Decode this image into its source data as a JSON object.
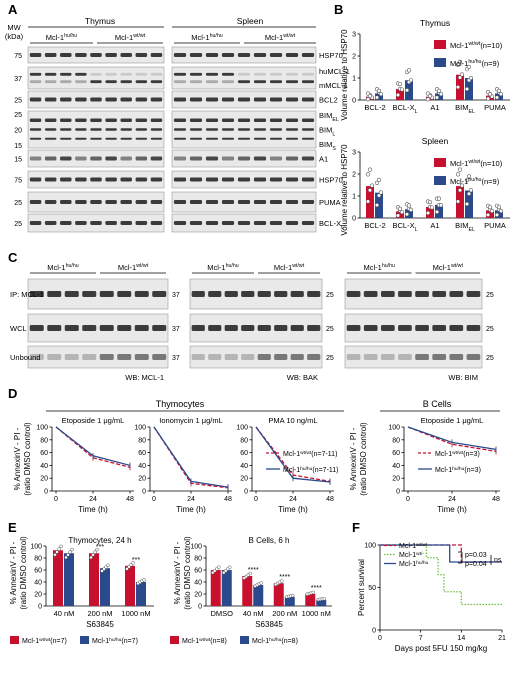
{
  "panel_labels": {
    "a": "A",
    "b": "B",
    "c": "C",
    "d": "D",
    "e": "E",
    "f": "F"
  },
  "colors": {
    "wt": "#c8102e",
    "hu": "#2a4a8c",
    "het": "#6cbf3a",
    "blot_bg": "#e9e9e9",
    "band": "#1c1c1c"
  },
  "panel_a": {
    "tissue_left": "Thymus",
    "tissue_right": "Spleen",
    "mw_title": "MW",
    "mw_unit": "(kDa)",
    "groups": [
      {
        "base": "Mcl-1",
        "sup": "hu/hu"
      },
      {
        "base": "Mcl-1",
        "sup": "wt/wt"
      },
      {
        "base": "Mcl-1",
        "sup": "hu/hu"
      },
      {
        "base": "Mcl-1",
        "sup": "wt/wt"
      }
    ],
    "rows": [
      {
        "mw": [
          "75"
        ],
        "labels": [
          {
            "base": "HSP70",
            "sub": ""
          }
        ]
      },
      {
        "mw": [
          "37"
        ],
        "labels": [
          {
            "base": "huMCL-1",
            "sub": ""
          },
          {
            "base": "mMCL-1",
            "sub": ""
          }
        ]
      },
      {
        "mw": [
          "25"
        ],
        "labels": [
          {
            "base": "BCL2",
            "sub": ""
          }
        ]
      },
      {
        "mw": [
          "25",
          "20",
          "15"
        ],
        "labels": [
          {
            "base": "BIM",
            "sub": "EL"
          },
          {
            "base": "BIM",
            "sub": "L"
          },
          {
            "base": "BIM",
            "sub": "S"
          }
        ]
      },
      {
        "mw": [
          "15"
        ],
        "labels": [
          {
            "base": "A1",
            "sub": ""
          }
        ]
      },
      {
        "mw": [
          "75"
        ],
        "labels": [
          {
            "base": "HSP70",
            "sub": ""
          }
        ]
      },
      {
        "mw": [
          "25"
        ],
        "labels": [
          {
            "base": "PUMA",
            "sub": ""
          }
        ]
      },
      {
        "mw": [
          "25"
        ],
        "labels": [
          {
            "base": "BCL-X",
            "sub": "L"
          }
        ]
      }
    ]
  },
  "chart_data": [
    {
      "id": "B-thymus",
      "type": "bar",
      "title": "Thymus",
      "ylabel": "Volume relative to HSP70",
      "ylim": [
        0,
        3
      ],
      "yticks": [
        0,
        1,
        2,
        3
      ],
      "categories": [
        {
          "base": "BCL-2",
          "sub": ""
        },
        {
          "base": "BCL-X",
          "sub": "L"
        },
        {
          "base": "A1",
          "sub": ""
        },
        {
          "base": "BIM",
          "sub": "EL"
        },
        {
          "base": "PUMA",
          "sub": ""
        }
      ],
      "series": [
        {
          "base": "Mcl-1",
          "sup": "wt/wt",
          "n": "(n=10)",
          "values": [
            0.15,
            0.5,
            0.15,
            1.15,
            0.2
          ]
        },
        {
          "base": "Mcl-1",
          "sup": "hu/hu",
          "n": "(n=9)",
          "values": [
            0.3,
            0.9,
            0.3,
            1.0,
            0.3
          ]
        }
      ],
      "legend": "top-right"
    },
    {
      "id": "B-spleen",
      "type": "bar",
      "title": "Spleen",
      "ylabel": "Volume relative to HSP70",
      "ylim": [
        0,
        3
      ],
      "yticks": [
        0,
        1,
        2,
        3
      ],
      "categories": [
        {
          "base": "BCL-2",
          "sub": ""
        },
        {
          "base": "BCL-X",
          "sub": "L"
        },
        {
          "base": "A1",
          "sub": ""
        },
        {
          "base": "BIM",
          "sub": "EL"
        },
        {
          "base": "PUMA",
          "sub": ""
        }
      ],
      "series": [
        {
          "base": "Mcl-1",
          "sup": "wt/wt",
          "n": "(n=10)",
          "values": [
            1.45,
            0.3,
            0.5,
            1.45,
            0.35
          ]
        },
        {
          "base": "Mcl-1",
          "sup": "hu/hu",
          "n": "(n=9)",
          "values": [
            1.15,
            0.4,
            0.6,
            1.25,
            0.35
          ]
        }
      ],
      "legend": "top-right"
    },
    {
      "id": "D1",
      "type": "line",
      "title": "Etoposide 1 μg/mL",
      "x": [
        0,
        24,
        48
      ],
      "xticks": [
        0,
        24,
        48
      ],
      "xlabel": "Time (h)",
      "ylim": [
        0,
        100
      ],
      "yticks": [
        0,
        20,
        40,
        60,
        80,
        100
      ],
      "series": [
        {
          "key": "wt",
          "values": [
            100,
            52,
            37
          ]
        },
        {
          "key": "hu",
          "values": [
            100,
            55,
            40
          ]
        }
      ]
    },
    {
      "id": "D2",
      "type": "line",
      "title": "Ionomycin 1 μg/mL",
      "x": [
        0,
        24,
        48
      ],
      "xticks": [
        0,
        24,
        48
      ],
      "xlabel": "Time (h)",
      "ylim": [
        0,
        100
      ],
      "yticks": [
        0,
        20,
        40,
        60,
        80,
        100
      ],
      "series": [
        {
          "key": "wt",
          "values": [
            100,
            12,
            5
          ]
        },
        {
          "key": "hu",
          "values": [
            100,
            15,
            6
          ]
        }
      ]
    },
    {
      "id": "D3",
      "type": "line",
      "title": "PMA 10 ng/mL",
      "x": [
        0,
        24,
        48
      ],
      "xticks": [
        0,
        24,
        48
      ],
      "xlabel": "Time (h)",
      "ylim": [
        0,
        100
      ],
      "yticks": [
        0,
        20,
        40,
        60,
        80,
        100
      ],
      "series": [
        {
          "key": "wt",
          "values": [
            100,
            25,
            15
          ]
        },
        {
          "key": "hu",
          "values": [
            100,
            20,
            14
          ]
        }
      ],
      "legend": [
        {
          "key": "wt",
          "base": "Mcl-1",
          "sup": "wt/wt",
          "n": "(n=7-11)"
        },
        {
          "key": "hu",
          "base": "Mcl-1",
          "sup": "hu/hu",
          "n": "(n=7-11)"
        }
      ]
    },
    {
      "id": "D4",
      "type": "line",
      "title": "Etoposide 1 μg/mL",
      "x": [
        0,
        24,
        48
      ],
      "xticks": [
        0,
        24,
        48
      ],
      "xlabel": "Time (h)",
      "ylim": [
        0,
        100
      ],
      "yticks": [
        0,
        20,
        40,
        60,
        80,
        100
      ],
      "series": [
        {
          "key": "wt",
          "values": [
            100,
            73,
            62
          ]
        },
        {
          "key": "hu",
          "values": [
            100,
            76,
            65
          ]
        }
      ],
      "legend": [
        {
          "key": "wt",
          "base": "Mcl-1",
          "sup": "wt/wt",
          "n": "(n=3)"
        },
        {
          "key": "hu",
          "base": "Mcl-1",
          "sup": "hu/hu",
          "n": "(n=3)"
        }
      ]
    },
    {
      "id": "E1",
      "type": "bar",
      "title": "Thymocytes, 24 h",
      "ylim": [
        0,
        100
      ],
      "yticks": [
        0,
        20,
        40,
        60,
        80,
        100
      ],
      "categories": [
        "40 nM",
        "200 nM",
        "1000 nM"
      ],
      "xlabel": "S63845",
      "series": [
        {
          "key": "wt",
          "values": [
            93,
            88,
            67
          ]
        },
        {
          "key": "hu",
          "values": [
            88,
            63,
            40
          ]
        }
      ],
      "stars": [
        "",
        "***",
        "***"
      ],
      "legend": [
        {
          "key": "wt",
          "base": "Mcl-1",
          "sup": "wt/wt",
          "n": "(n=7)"
        },
        {
          "key": "hu",
          "base": "Mcl-1",
          "sup": "hu/hu",
          "n": "(n=7)"
        }
      ]
    },
    {
      "id": "E2",
      "type": "bar",
      "title": "B Cells, 6 h",
      "ylim": [
        0,
        100
      ],
      "yticks": [
        0,
        20,
        40,
        60,
        80,
        100
      ],
      "categories": [
        "DMSO",
        "40 nM",
        "200 nM",
        "1000 nM"
      ],
      "xlabel": "S63845",
      "series": [
        {
          "key": "wt",
          "values": [
            60,
            50,
            38,
            20
          ]
        },
        {
          "key": "hu",
          "values": [
            60,
            35,
            15,
            10
          ]
        }
      ],
      "stars": [
        "",
        "****",
        "****",
        "****"
      ],
      "legend": [
        {
          "key": "wt",
          "base": "Mcl-1",
          "sup": "wt/wt",
          "n": "(n=8)"
        },
        {
          "key": "hu",
          "base": "Mcl-1",
          "sup": "hu/hu",
          "n": "(n=8)"
        }
      ]
    },
    {
      "id": "F",
      "type": "line",
      "step": true,
      "ylabel": "Percent survival",
      "xlabel": "Days post 5FU 150 mg/kg",
      "xlim": [
        0,
        21
      ],
      "xticks": [
        0,
        7,
        14,
        21
      ],
      "ylim": [
        0,
        100
      ],
      "yticks": [
        0,
        50,
        100
      ],
      "series": [
        {
          "key": "wt",
          "base": "Mcl-1",
          "sup": "wt/wt",
          "points": [
            [
              0,
              100
            ],
            [
              14,
              100
            ],
            [
              14,
              80
            ],
            [
              21,
              80
            ]
          ]
        },
        {
          "key": "het",
          "base": "Mcl-1",
          "sup": "wt/-",
          "points": [
            [
              0,
              100
            ],
            [
              8,
              100
            ],
            [
              8,
              85
            ],
            [
              10,
              85
            ],
            [
              10,
              65
            ],
            [
              11,
              65
            ],
            [
              11,
              45
            ],
            [
              14,
              45
            ],
            [
              14,
              30
            ],
            [
              21,
              30
            ]
          ]
        },
        {
          "key": "hu",
          "base": "Mcl-1",
          "sup": "hu/hu",
          "points": [
            [
              0,
              100
            ],
            [
              12,
              100
            ],
            [
              12,
              80
            ],
            [
              21,
              80
            ]
          ]
        }
      ],
      "stats": [
        "p=0.03",
        "p=0.04",
        "ns"
      ]
    }
  ],
  "panel_c": {
    "groups": [
      {
        "base": "Mcl-1",
        "sup": "hu/hu"
      },
      {
        "base": "Mcl-1",
        "sup": "wt/wt"
      }
    ],
    "rows": [
      "IP: MCL-1",
      "WCL",
      "Unbound"
    ],
    "mw_1": [
      "37",
      "37",
      "37"
    ],
    "mw_2": [
      "25",
      "25",
      "25"
    ],
    "mw_3": [
      "25",
      "25",
      "25"
    ],
    "wb": [
      "WB: MCL-1",
      "WB: BAK",
      "WB: BIM"
    ]
  },
  "panel_d": {
    "header": "Thymocytes",
    "header2": "B Cells",
    "ylabel": "% AnnexinV - PI -",
    "ylabel2": "(ratio DMSO control)"
  },
  "panel_e": {
    "ylabel": "% AnnexinV - PI -",
    "ylabel2": "(ratio DMSO control)"
  }
}
